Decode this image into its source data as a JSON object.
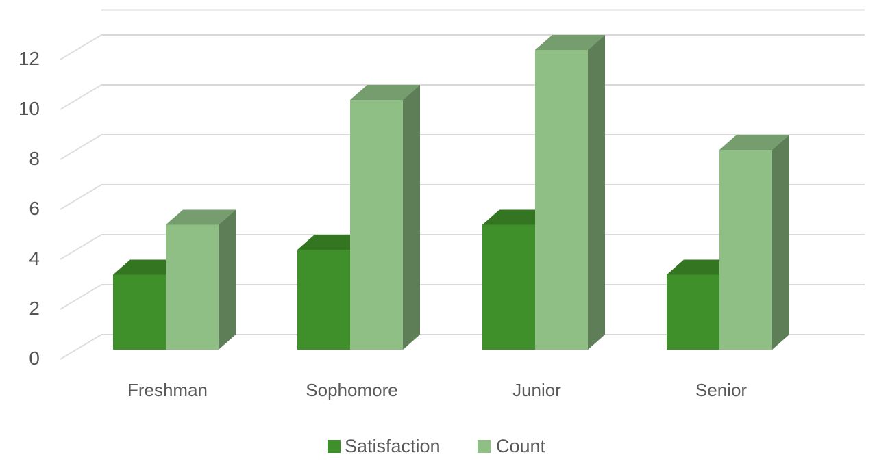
{
  "chart_data": {
    "type": "bar",
    "style": "3d-clustered-column",
    "categories": [
      "Freshman",
      "Sophomore",
      "Junior",
      "Senior"
    ],
    "series": [
      {
        "name": "Satisfaction",
        "values": [
          3,
          4,
          5,
          3
        ],
        "color": "#3f8f2a"
      },
      {
        "name": "Count",
        "values": [
          5,
          10,
          12,
          8
        ],
        "color": "#8fbf85"
      }
    ],
    "y_ticks": [
      "0",
      "2",
      "4",
      "6",
      "8",
      "10",
      "12"
    ],
    "ylim": [
      0,
      13
    ],
    "grid": true,
    "legend_position": "bottom"
  }
}
